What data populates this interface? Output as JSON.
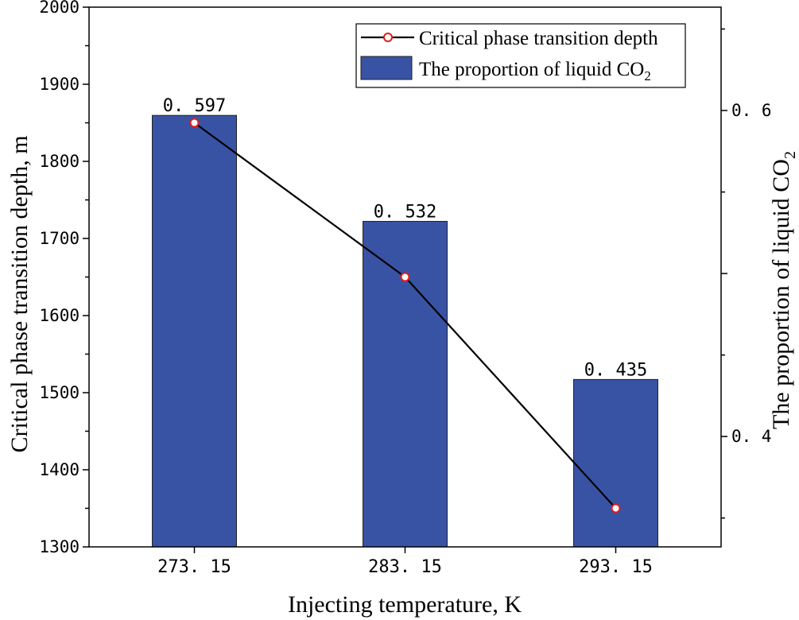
{
  "chart_data": {
    "type": "bar",
    "title": "",
    "xlabel": "Injecting temperature, K",
    "ylabel_left": "Critical phase transition depth, m",
    "ylabel_right": "The proportion of liquid CO",
    "ylabel_right_subscript": "2",
    "categories": [
      "273. 15",
      "283. 15",
      "293. 15"
    ],
    "series": [
      {
        "name": "The proportion of liquid CO",
        "name_subscript": "2",
        "kind": "bar",
        "axis": "right",
        "values": [
          0.597,
          0.532,
          0.435
        ],
        "labels": [
          "0. 597",
          "0. 532",
          "0. 435"
        ],
        "color": "#3953a4"
      },
      {
        "name": "Critical phase transition depth",
        "kind": "line",
        "axis": "left",
        "values": [
          1850,
          1650,
          1350
        ],
        "color": "#000000",
        "marker_color": "#e31a1c"
      }
    ],
    "ylim_left": [
      1300,
      2000
    ],
    "yticks_left": [
      "1300",
      "1400",
      "1500",
      "1600",
      "1700",
      "1800",
      "1900",
      "2000"
    ],
    "ylim_right": [
      0.3323,
      0.6634
    ],
    "yticks_right": [
      "0. 4",
      "0. 6"
    ],
    "grid": false,
    "legend_position": "top-right"
  }
}
